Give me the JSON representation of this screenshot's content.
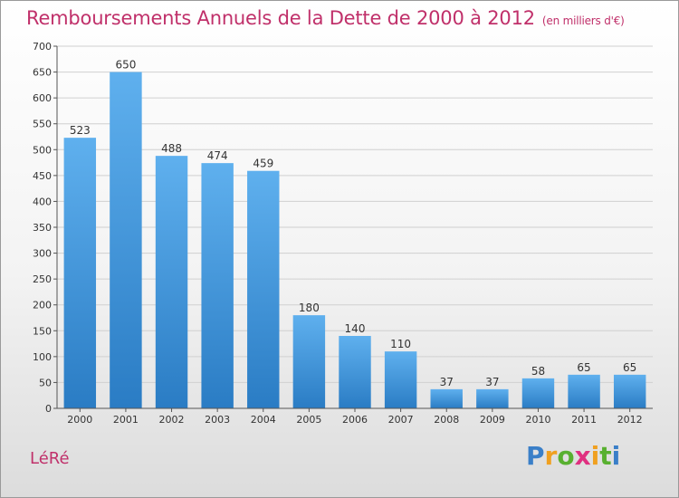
{
  "title": "Remboursements Annuels de la Dette de 2000 à 2012",
  "unit": "(en milliers d'€)",
  "commune": "LéRé",
  "logo": {
    "letters": [
      "P",
      "r",
      "o",
      "x",
      "i",
      "t",
      "i"
    ],
    "colors": [
      "#3a7fc8",
      "#f0a020",
      "#58b030",
      "#e03080",
      "#f0a020",
      "#58b030",
      "#3a7fc8"
    ]
  },
  "chart_data": {
    "type": "bar",
    "categories": [
      "2000",
      "2001",
      "2002",
      "2003",
      "2004",
      "2005",
      "2006",
      "2007",
      "2008",
      "2009",
      "2010",
      "2011",
      "2012"
    ],
    "values": [
      523,
      650,
      488,
      474,
      459,
      180,
      140,
      110,
      37,
      37,
      58,
      65,
      65
    ],
    "ylim": [
      0,
      700
    ],
    "yticks": [
      0,
      50,
      100,
      150,
      200,
      250,
      300,
      350,
      400,
      450,
      500,
      550,
      600,
      650,
      700
    ],
    "grid": true,
    "bar_color": "#3d8fd6"
  }
}
